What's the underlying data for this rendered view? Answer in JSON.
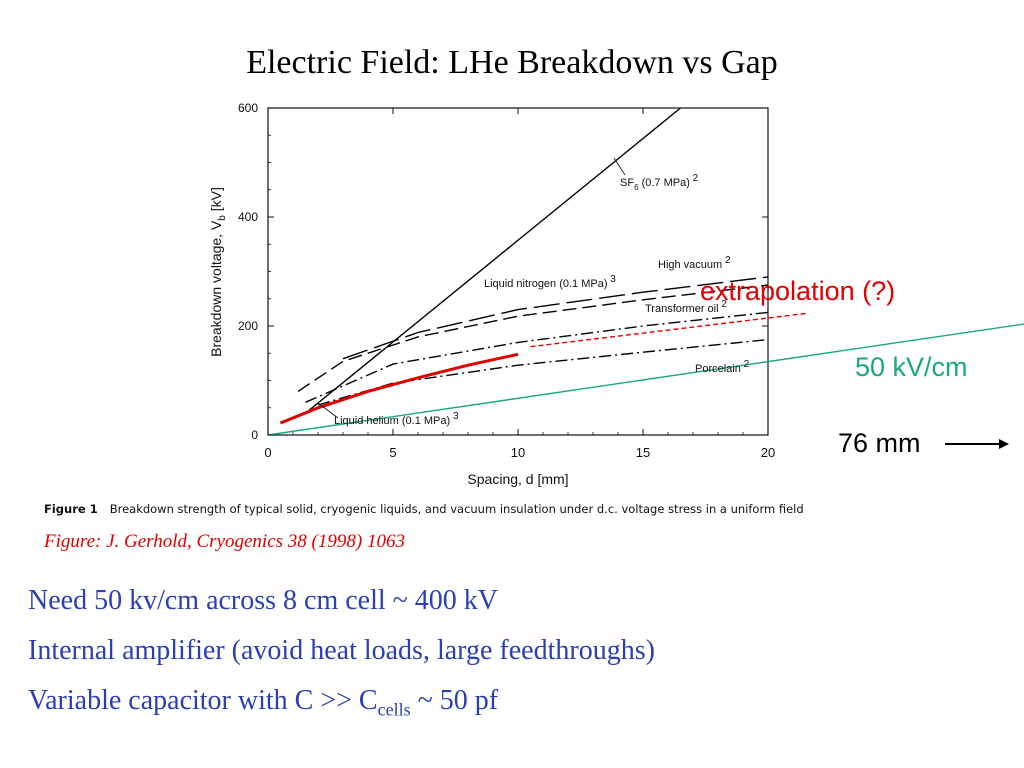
{
  "title": "Electric Field: LHe Breakdown vs Gap",
  "chart_data": {
    "type": "line",
    "xlabel": "Spacing, d  [mm]",
    "ylabel": "Breakdown voltage, V_b  [kV]",
    "ylabel_main": "Breakdown voltage, V",
    "ylabel_sub": "b",
    "ylabel_unit": "  [kV]",
    "xlim": [
      0,
      20
    ],
    "ylim": [
      0,
      600
    ],
    "x_ticks": [
      0,
      5,
      10,
      15,
      20
    ],
    "y_ticks": [
      0,
      200,
      400,
      600
    ],
    "grid": false,
    "series": [
      {
        "name": "SF6 (0.7 MPa)",
        "label": "SF",
        "label_sub": "6",
        "label_rest": " (0.7 MPa)",
        "ref": "2",
        "style": "solid",
        "color": "#000000",
        "x": [
          1.5,
          16.5
        ],
        "y": [
          40,
          600
        ]
      },
      {
        "name": "High vacuum",
        "label": "High vacuum",
        "ref": "2",
        "style": "longdash",
        "color": "#000000",
        "x": [
          3,
          6,
          10,
          15,
          20
        ],
        "y": [
          140,
          188,
          230,
          262,
          290
        ]
      },
      {
        "name": "Liquid nitrogen (0.1 MPa)",
        "label": "Liquid nitrogen (0.1 MPa)",
        "ref": "3",
        "style": "dash",
        "color": "#000000",
        "x": [
          1.2,
          3,
          6,
          10,
          15,
          20
        ],
        "y": [
          80,
          135,
          180,
          218,
          248,
          275
        ]
      },
      {
        "name": "Transformer oil",
        "label": "Transformer oil",
        "ref": "2",
        "style": "dashdot",
        "color": "#000000",
        "x": [
          1.5,
          5,
          10,
          15,
          20
        ],
        "y": [
          60,
          130,
          170,
          200,
          225
        ]
      },
      {
        "name": "Porcelain",
        "label": "Porcelain",
        "ref": "2",
        "style": "dashdot",
        "color": "#000000",
        "x": [
          2,
          5,
          10,
          15,
          20
        ],
        "y": [
          55,
          95,
          128,
          152,
          175
        ]
      },
      {
        "name": "Liquid helium (0.1 MPa)",
        "label": "Liquid helium (0.1 MPa)",
        "ref": "3",
        "style": "solid",
        "color": "#000000",
        "x": [
          0.5,
          2,
          4,
          6,
          8,
          10
        ],
        "y": [
          22,
          50,
          80,
          105,
          128,
          148
        ]
      },
      {
        "name": "Liquid helium (highlight)",
        "style": "thick",
        "color": "#e00000",
        "x": [
          0.5,
          2,
          4,
          6,
          8,
          10
        ],
        "y": [
          22,
          50,
          80,
          105,
          128,
          148
        ]
      },
      {
        "name": "extrapolation (?)",
        "style": "finedash",
        "color": "#e00000",
        "x": [
          10.5,
          21.5
        ],
        "y": [
          162,
          223
        ]
      },
      {
        "name": "50 kV/cm",
        "style": "solid",
        "color": "#1aa97a",
        "x": [
          0,
          30.3
        ],
        "y": [
          0,
          204
        ]
      }
    ]
  },
  "annotations": {
    "extrapolation": "extrapolation (?)",
    "field": "50 kV/cm",
    "gap": "76 mm"
  },
  "figure_caption": {
    "label": "Figure 1",
    "text": "Breakdown strength of typical solid, cryogenic liquids, and vacuum insulation under d.c. voltage stress in a uniform field"
  },
  "credit": "Figure: J. Gerhold, Cryogenics 38 (1998) 1063",
  "bullets": {
    "b1": "Need 50 kv/cm across 8 cm cell ~ 400 kV",
    "b2": "Internal amplifier (avoid heat loads, large feedthroughs)",
    "b3_pre": "Variable capacitor with C >> C",
    "b3_sub": "cells",
    "b3_post": " ~ 50 pf"
  },
  "colors": {
    "red": "#e00000",
    "green": "#1aa97a",
    "blue": "#2a3fb5"
  }
}
